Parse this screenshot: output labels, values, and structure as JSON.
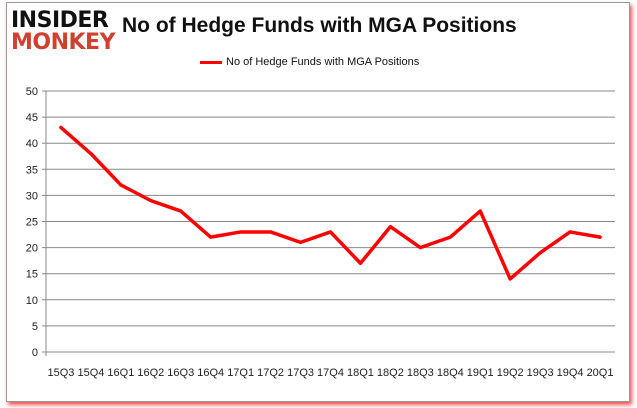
{
  "logo": {
    "line1": "INSIDER",
    "line2": "MONKEY"
  },
  "chart_data": {
    "type": "line",
    "title": "No of Hedge Funds with MGA Positions",
    "categories": [
      "15Q3",
      "15Q4",
      "16Q1",
      "16Q2",
      "16Q3",
      "16Q4",
      "17Q1",
      "17Q2",
      "17Q3",
      "17Q4",
      "18Q1",
      "18Q2",
      "18Q3",
      "18Q4",
      "19Q1",
      "19Q2",
      "19Q3",
      "19Q4",
      "20Q1"
    ],
    "series": [
      {
        "name": "No of Hedge Funds with MGA Positions",
        "color": "#ff0000",
        "values": [
          43,
          38,
          32,
          29,
          27,
          22,
          23,
          23,
          21,
          23,
          17,
          24,
          20,
          22,
          27,
          14,
          19,
          23,
          22
        ]
      }
    ],
    "ylim": [
      0,
      50
    ],
    "yticks": [
      0,
      5,
      10,
      15,
      20,
      25,
      30,
      35,
      40,
      45,
      50
    ],
    "grid": true,
    "legend": "top-center"
  }
}
